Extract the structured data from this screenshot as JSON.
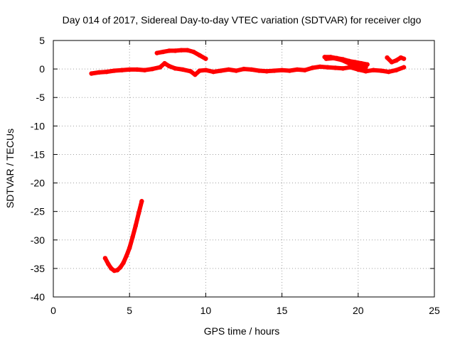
{
  "chart_data": {
    "type": "scatter",
    "title": "Day 014 of 2017, Sidereal Day-to-day VTEC variation (SDTVAR) for receiver clgo",
    "xlabel": "GPS time / hours",
    "ylabel": "SDTVAR / TECUs",
    "xlim": [
      0,
      25
    ],
    "ylim": [
      -40,
      5
    ],
    "xticks": [
      0,
      5,
      10,
      15,
      20,
      25
    ],
    "yticks": [
      5,
      0,
      -5,
      -10,
      -15,
      -20,
      -25,
      -30,
      -35,
      -40
    ],
    "xtick_labels": [
      "0",
      "5",
      "10",
      "15",
      "20",
      "25"
    ],
    "ytick_labels": [
      "5",
      "0",
      "-5",
      "-10",
      "-15",
      "-20",
      "-25",
      "-30",
      "-35",
      "-40"
    ],
    "grid": true,
    "series_color": "#ff0000",
    "series": [
      {
        "name": "main-band",
        "points": [
          [
            2.5,
            -0.8
          ],
          [
            3.0,
            -0.6
          ],
          [
            3.5,
            -0.5
          ],
          [
            4.0,
            -0.3
          ],
          [
            4.5,
            -0.2
          ],
          [
            5.0,
            -0.1
          ],
          [
            5.5,
            -0.1
          ],
          [
            6.0,
            -0.2
          ],
          [
            6.5,
            0.0
          ],
          [
            7.0,
            0.3
          ],
          [
            7.3,
            1.0
          ],
          [
            7.6,
            0.5
          ],
          [
            8.0,
            0.1
          ],
          [
            8.5,
            -0.1
          ],
          [
            9.0,
            -0.4
          ],
          [
            9.3,
            -1.0
          ],
          [
            9.6,
            -0.3
          ],
          [
            10.0,
            -0.2
          ],
          [
            10.5,
            -0.5
          ],
          [
            11.0,
            -0.3
          ],
          [
            11.5,
            -0.1
          ],
          [
            12.0,
            -0.3
          ],
          [
            12.5,
            0.0
          ],
          [
            13.0,
            -0.1
          ],
          [
            13.5,
            -0.3
          ],
          [
            14.0,
            -0.4
          ],
          [
            14.5,
            -0.3
          ],
          [
            15.0,
            -0.2
          ],
          [
            15.5,
            -0.3
          ],
          [
            16.0,
            -0.1
          ],
          [
            16.5,
            -0.2
          ],
          [
            17.0,
            0.2
          ],
          [
            17.5,
            0.4
          ],
          [
            18.0,
            0.3
          ],
          [
            18.5,
            0.2
          ],
          [
            19.0,
            0.1
          ],
          [
            19.5,
            0.3
          ],
          [
            20.0,
            -0.1
          ],
          [
            20.5,
            -0.4
          ],
          [
            21.0,
            -0.2
          ],
          [
            21.5,
            -0.3
          ],
          [
            22.0,
            -0.5
          ],
          [
            22.5,
            -0.2
          ],
          [
            23.0,
            0.3
          ]
        ]
      },
      {
        "name": "upper-arc-early",
        "points": [
          [
            6.8,
            2.8
          ],
          [
            7.2,
            3.0
          ],
          [
            7.6,
            3.2
          ],
          [
            8.0,
            3.2
          ],
          [
            8.4,
            3.3
          ],
          [
            8.8,
            3.3
          ],
          [
            9.2,
            3.0
          ],
          [
            9.6,
            2.4
          ],
          [
            10.0,
            1.8
          ]
        ]
      },
      {
        "name": "upper-arc-late-1",
        "points": [
          [
            17.8,
            2.1
          ],
          [
            18.2,
            2.1
          ],
          [
            18.6,
            1.9
          ],
          [
            19.0,
            1.7
          ],
          [
            19.4,
            1.4
          ],
          [
            19.8,
            1.2
          ],
          [
            20.2,
            1.0
          ],
          [
            20.6,
            0.8
          ]
        ]
      },
      {
        "name": "upper-arc-late-2",
        "points": [
          [
            17.9,
            1.8
          ],
          [
            18.4,
            1.9
          ],
          [
            18.9,
            1.6
          ],
          [
            19.4,
            1.0
          ],
          [
            19.9,
            0.6
          ],
          [
            20.5,
            0.3
          ]
        ]
      },
      {
        "name": "upper-arc-late-3",
        "points": [
          [
            21.9,
            2.0
          ],
          [
            22.2,
            1.2
          ],
          [
            22.5,
            1.5
          ],
          [
            22.8,
            2.0
          ],
          [
            23.0,
            1.8
          ]
        ]
      },
      {
        "name": "lower-hook",
        "points": [
          [
            3.4,
            -33.2
          ],
          [
            3.6,
            -34.2
          ],
          [
            3.8,
            -35.0
          ],
          [
            4.0,
            -35.4
          ],
          [
            4.2,
            -35.3
          ],
          [
            4.4,
            -34.8
          ],
          [
            4.6,
            -34.0
          ],
          [
            4.8,
            -32.8
          ],
          [
            5.0,
            -31.4
          ],
          [
            5.2,
            -29.5
          ],
          [
            5.4,
            -27.5
          ],
          [
            5.6,
            -25.3
          ],
          [
            5.8,
            -23.2
          ]
        ]
      }
    ]
  }
}
